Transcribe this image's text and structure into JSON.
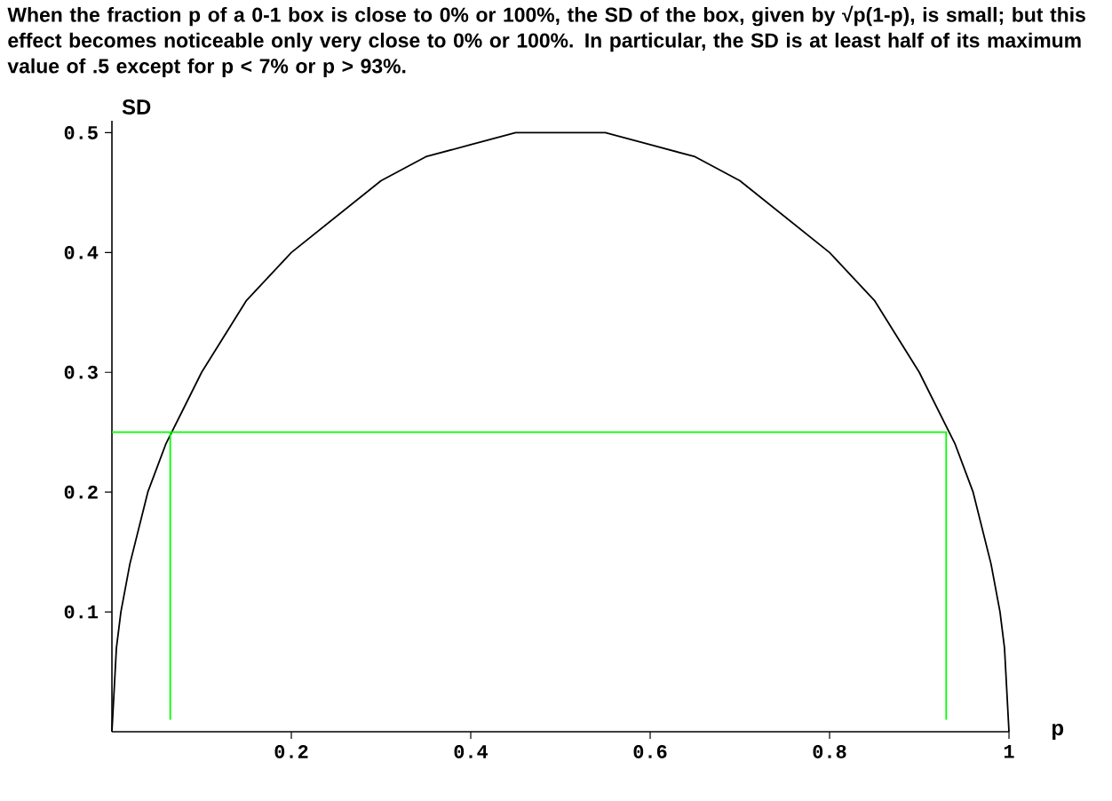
{
  "chart_data": {
    "type": "line",
    "title": "When the fraction  p  of a 0-1 box is close to 0% or 100%, the SD of the box, given by √p(1-p), is small; but this effect becomes noticeable only very close to 0% or 100%.  In particular, the SD is at least half of its maximum value of .5 except for  p < 7%  or  p > 93%.",
    "xlabel": "p",
    "ylabel": "SD",
    "xlim": [
      0,
      1
    ],
    "ylim": [
      0,
      0.51
    ],
    "xticks": [
      0.2,
      0.4,
      0.6,
      0.8,
      1
    ],
    "yticks": [
      0.1,
      0.2,
      0.3,
      0.4,
      0.5
    ],
    "grid": false,
    "marker": "none",
    "line_style": "solid",
    "series": [
      {
        "color": "#000000",
        "x": [
          0,
          0.005,
          0.01,
          0.02,
          0.04,
          0.06,
          0.08,
          0.1,
          0.15,
          0.2,
          0.25,
          0.3,
          0.35,
          0.4,
          0.45,
          0.5,
          0.55,
          0.6,
          0.65,
          0.7,
          0.75,
          0.8,
          0.85,
          0.9,
          0.92,
          0.94,
          0.96,
          0.98,
          0.99,
          0.995,
          1
        ],
        "values": [
          0,
          0.07,
          0.1,
          0.14,
          0.2,
          0.24,
          0.27,
          0.3,
          0.36,
          0.4,
          0.43,
          0.46,
          0.48,
          0.49,
          0.5,
          0.5,
          0.5,
          0.49,
          0.48,
          0.46,
          0.43,
          0.4,
          0.36,
          0.3,
          0.27,
          0.24,
          0.2,
          0.14,
          0.1,
          0.07,
          0
        ]
      },
      {
        "color": "#00ff00",
        "x": [
          0,
          0.93,
          0.93
        ],
        "values": [
          0.25,
          0.25,
          0.01
        ]
      },
      {
        "color": "#00ff00",
        "x": [
          0.065,
          0.065
        ],
        "values": [
          0.25,
          0.01
        ]
      }
    ]
  }
}
